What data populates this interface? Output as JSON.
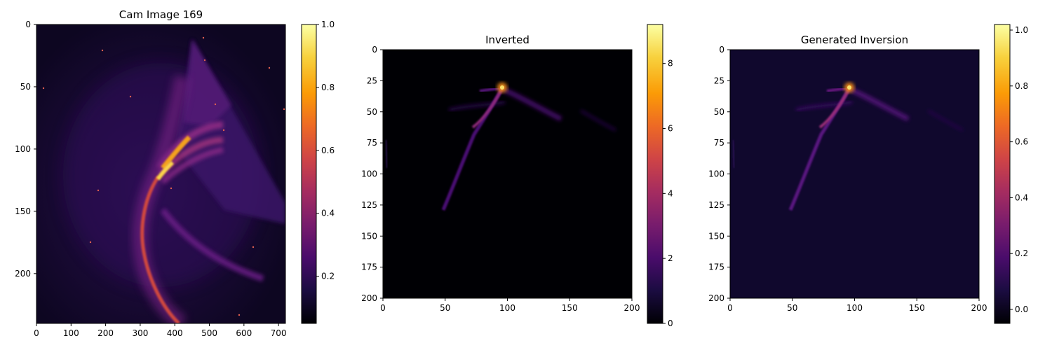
{
  "chart_data": [
    {
      "type": "heatmap",
      "title": "Cam Image 169",
      "xlabel": "",
      "ylabel": "",
      "x_ticks": [
        0,
        100,
        200,
        300,
        400,
        500,
        600,
        700
      ],
      "y_ticks": [
        0,
        50,
        100,
        150,
        200
      ],
      "xlim": [
        0,
        720
      ],
      "ylim": [
        240,
        0
      ],
      "colormap": "inferno",
      "colorbar": {
        "range": [
          0.05,
          1.0
        ],
        "ticks": [
          "0.2",
          "0.4",
          "0.6",
          "0.8",
          "1.0"
        ],
        "tick_values": [
          0.2,
          0.4,
          0.6,
          0.8,
          1.0
        ]
      }
    },
    {
      "type": "heatmap",
      "title": "Inverted",
      "xlabel": "",
      "ylabel": "",
      "x_ticks": [
        0,
        50,
        100,
        150,
        200
      ],
      "y_ticks": [
        0,
        25,
        50,
        75,
        100,
        125,
        150,
        175,
        200
      ],
      "xlim": [
        0,
        200
      ],
      "ylim": [
        200,
        0
      ],
      "colormap": "inferno",
      "colorbar": {
        "range": [
          0,
          9.2
        ],
        "ticks": [
          "0",
          "2",
          "4",
          "6",
          "8"
        ],
        "tick_values": [
          0,
          2,
          4,
          6,
          8
        ]
      }
    },
    {
      "type": "heatmap",
      "title": "Generated Inversion",
      "xlabel": "",
      "ylabel": "",
      "x_ticks": [
        0,
        50,
        100,
        150,
        200
      ],
      "y_ticks": [
        0,
        25,
        50,
        75,
        100,
        125,
        150,
        175,
        200
      ],
      "xlim": [
        0,
        200
      ],
      "ylim": [
        200,
        0
      ],
      "colormap": "inferno",
      "colorbar": {
        "range": [
          -0.05,
          1.02
        ],
        "ticks": [
          "0.0",
          "0.2",
          "0.4",
          "0.6",
          "0.8",
          "1.0"
        ],
        "tick_values": [
          0.0,
          0.2,
          0.4,
          0.6,
          0.8,
          1.0
        ]
      }
    }
  ],
  "colors": {
    "inferno": [
      "#000004",
      "#1b0c41",
      "#4a0c6b",
      "#781c6d",
      "#a52c60",
      "#cf4446",
      "#ed6925",
      "#fb9b06",
      "#f7d13d",
      "#fcffa4"
    ]
  }
}
